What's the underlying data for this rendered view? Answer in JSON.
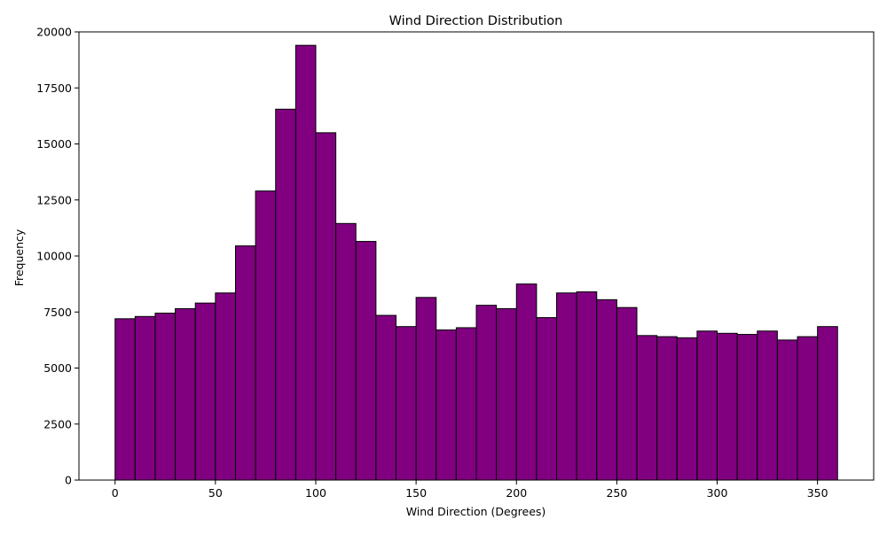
{
  "chart_data": {
    "type": "bar",
    "title": "Wind Direction Distribution",
    "xlabel": "Wind Direction (Degrees)",
    "ylabel": "Frequency",
    "xlim": [
      -18,
      378
    ],
    "ylim": [
      0,
      20000
    ],
    "bin_width": 10,
    "bins": [
      {
        "start": 0,
        "value": 7200
      },
      {
        "start": 10,
        "value": 7300
      },
      {
        "start": 20,
        "value": 7450
      },
      {
        "start": 30,
        "value": 7650
      },
      {
        "start": 40,
        "value": 7900
      },
      {
        "start": 50,
        "value": 8350
      },
      {
        "start": 60,
        "value": 10450
      },
      {
        "start": 70,
        "value": 12900
      },
      {
        "start": 80,
        "value": 16550
      },
      {
        "start": 90,
        "value": 19400
      },
      {
        "start": 100,
        "value": 15500
      },
      {
        "start": 110,
        "value": 11450
      },
      {
        "start": 120,
        "value": 10650
      },
      {
        "start": 130,
        "value": 7350
      },
      {
        "start": 140,
        "value": 6850
      },
      {
        "start": 150,
        "value": 8150
      },
      {
        "start": 160,
        "value": 6700
      },
      {
        "start": 170,
        "value": 6800
      },
      {
        "start": 180,
        "value": 7800
      },
      {
        "start": 190,
        "value": 7650
      },
      {
        "start": 200,
        "value": 8750
      },
      {
        "start": 210,
        "value": 7250
      },
      {
        "start": 220,
        "value": 8350
      },
      {
        "start": 230,
        "value": 8400
      },
      {
        "start": 240,
        "value": 8050
      },
      {
        "start": 250,
        "value": 7700
      },
      {
        "start": 260,
        "value": 6450
      },
      {
        "start": 270,
        "value": 6400
      },
      {
        "start": 280,
        "value": 6350
      },
      {
        "start": 290,
        "value": 6650
      },
      {
        "start": 300,
        "value": 6550
      },
      {
        "start": 310,
        "value": 6500
      },
      {
        "start": 320,
        "value": 6650
      },
      {
        "start": 330,
        "value": 6250
      },
      {
        "start": 340,
        "value": 6400
      },
      {
        "start": 350,
        "value": 6850
      }
    ],
    "x_ticks": [
      0,
      50,
      100,
      150,
      200,
      250,
      300,
      350
    ],
    "y_ticks": [
      0,
      2500,
      5000,
      7500,
      10000,
      12500,
      15000,
      17500,
      20000
    ],
    "grid": false,
    "colors": {
      "bar_fill": "#800080",
      "bar_edge": "#000000"
    }
  }
}
